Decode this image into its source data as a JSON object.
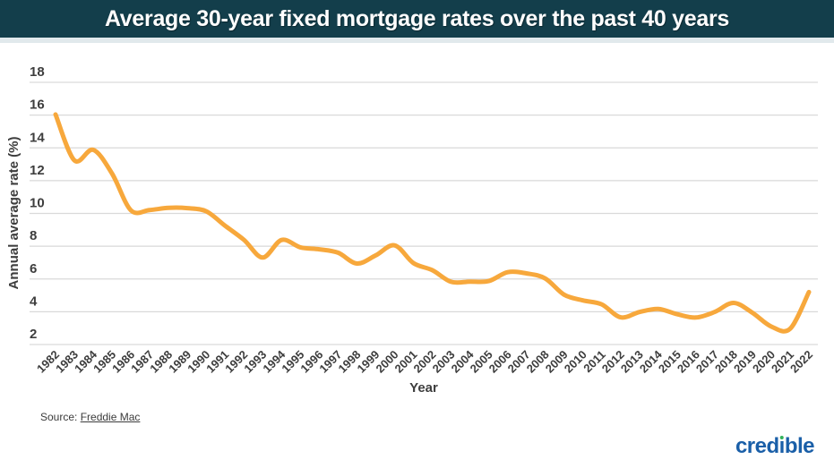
{
  "header": {
    "title": "Average 30-year fixed mortgage rates over the past 40 years",
    "background": "#133e4b",
    "text_color": "#ffffff"
  },
  "chart_data": {
    "type": "line",
    "title": "Average 30-year fixed mortgage rates over the past 40 years",
    "xlabel": "Year",
    "ylabel": "Annual average rate (%)",
    "x": [
      1982,
      1983,
      1984,
      1985,
      1986,
      1987,
      1988,
      1989,
      1990,
      1991,
      1992,
      1993,
      1994,
      1995,
      1996,
      1997,
      1998,
      1999,
      2000,
      2001,
      2002,
      2003,
      2004,
      2005,
      2006,
      2007,
      2008,
      2009,
      2010,
      2011,
      2012,
      2013,
      2014,
      2015,
      2016,
      2017,
      2018,
      2019,
      2020,
      2021,
      2022
    ],
    "series": [
      {
        "name": "Average 30-year fixed mortgage rate (%)",
        "values": [
          16.04,
          13.24,
          13.88,
          12.43,
          10.19,
          10.21,
          10.34,
          10.32,
          10.13,
          9.25,
          8.39,
          7.31,
          8.38,
          7.93,
          7.81,
          7.6,
          6.94,
          7.44,
          8.05,
          6.97,
          6.54,
          5.83,
          5.84,
          5.87,
          6.41,
          6.34,
          6.03,
          5.04,
          4.69,
          4.45,
          3.66,
          3.98,
          4.17,
          3.85,
          3.65,
          3.99,
          4.54,
          3.94,
          3.1,
          2.96,
          5.2
        ]
      }
    ],
    "ylim": [
      2,
      18
    ],
    "yticks": [
      2,
      4,
      6,
      8,
      10,
      12,
      14,
      16,
      18
    ],
    "grid": true,
    "legend": "none",
    "line_color": "#f7a83c",
    "grid_color": "#d9d9d9"
  },
  "footer": {
    "source_prefix": "Source:",
    "source_link": "Freddie Mac",
    "logo": {
      "text": "credible",
      "part1": "cred",
      "dotless_i": "ı",
      "part2": "ble",
      "blue": "#1a5fa8",
      "dot_color": "#33b25a"
    }
  }
}
